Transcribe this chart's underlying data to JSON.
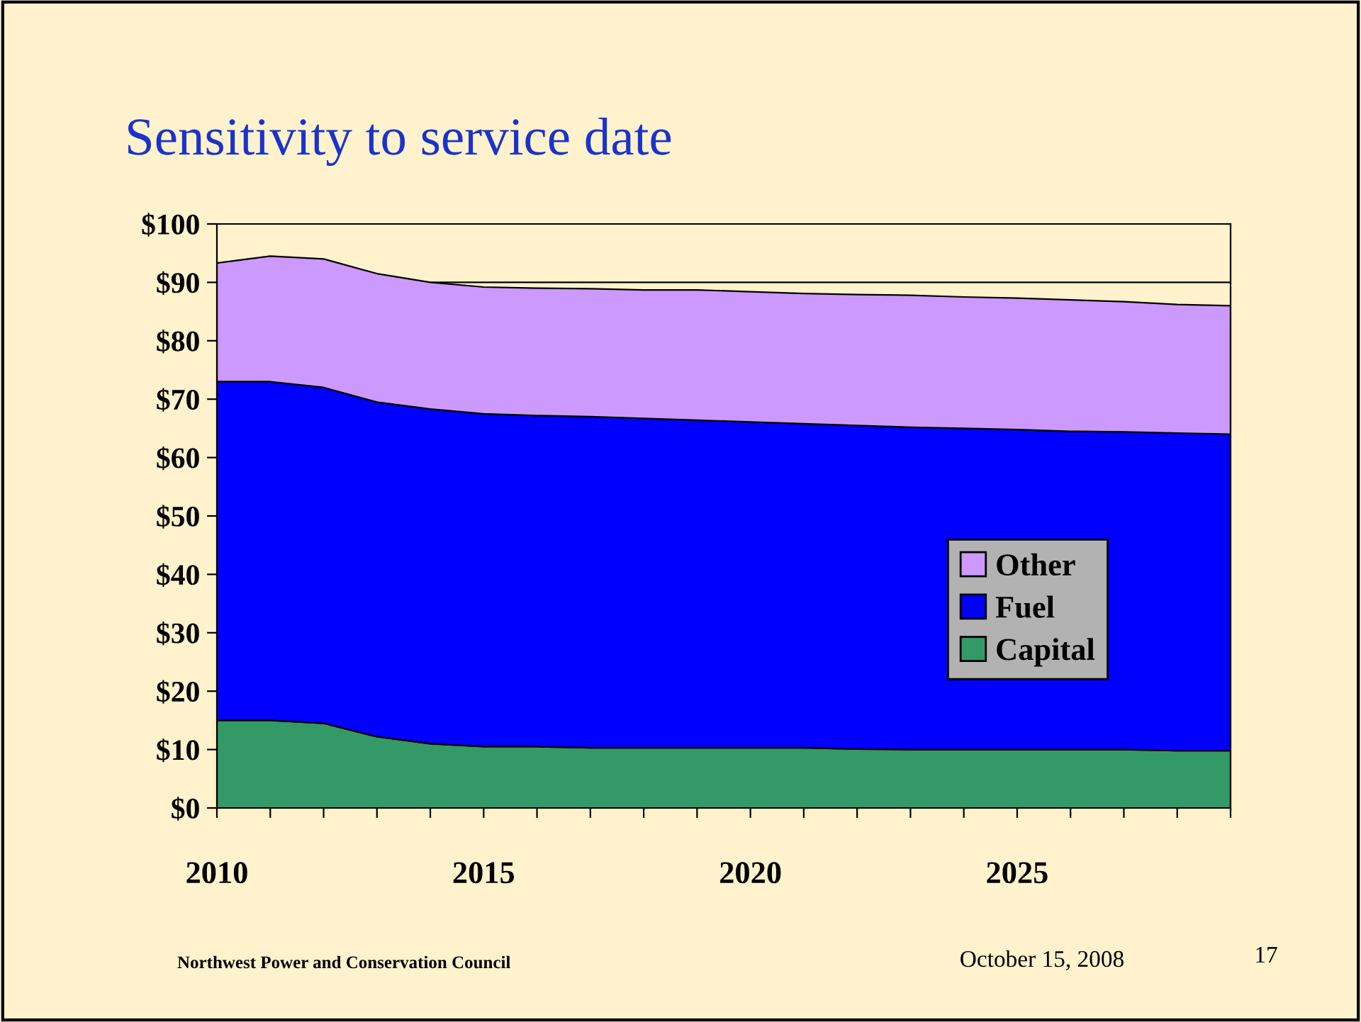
{
  "chart_data": {
    "type": "area",
    "title": "Sensitivity to service date",
    "stacked": true,
    "x": [
      2010,
      2011,
      2012,
      2013,
      2014,
      2015,
      2016,
      2017,
      2018,
      2019,
      2020,
      2021,
      2022,
      2023,
      2024,
      2025,
      2026,
      2027,
      2028,
      2029
    ],
    "series": [
      {
        "name": "Capital",
        "color": "#339966",
        "values": [
          15,
          15,
          14.5,
          12.2,
          11,
          10.5,
          10.5,
          10.3,
          10.3,
          10.3,
          10.3,
          10.3,
          10.1,
          10,
          10,
          10,
          10,
          10,
          9.8,
          9.8
        ]
      },
      {
        "name": "Fuel",
        "color": "#0000ff",
        "values": [
          58,
          58,
          57.5,
          57.3,
          57.3,
          57,
          56.7,
          56.7,
          56.4,
          56.1,
          55.8,
          55.5,
          55.4,
          55.2,
          55,
          54.8,
          54.5,
          54.4,
          54.4,
          54.2
        ]
      },
      {
        "name": "Other",
        "color": "#cc99ff",
        "values": [
          20.3,
          21.5,
          22,
          22,
          21.7,
          21.7,
          21.8,
          21.9,
          22,
          22.3,
          22.3,
          22.3,
          22.4,
          22.6,
          22.5,
          22.5,
          22.5,
          22.3,
          22,
          22
        ]
      }
    ],
    "xlim": [
      2010,
      2029
    ],
    "xticks": [
      2010,
      {
        "value": 2011,
        "label": null
      },
      {
        "value": 2012,
        "label": null
      },
      {
        "value": 2013,
        "label": null
      },
      {
        "value": 2014,
        "label": null
      },
      2015,
      {
        "value": 2016,
        "label": null
      },
      {
        "value": 2017,
        "label": null
      },
      {
        "value": 2018,
        "label": null
      },
      {
        "value": 2019,
        "label": null
      },
      2020,
      {
        "value": 2021,
        "label": null
      },
      {
        "value": 2022,
        "label": null
      },
      {
        "value": 2023,
        "label": null
      },
      {
        "value": 2024,
        "label": null
      },
      2025,
      {
        "value": 2026,
        "label": null
      },
      {
        "value": 2027,
        "label": null
      },
      {
        "value": 2028,
        "label": null
      },
      {
        "value": 2029,
        "label": null
      }
    ],
    "ylim": [
      0,
      100
    ],
    "yticks": [
      {
        "value": 0,
        "label": "$0"
      },
      {
        "value": 10,
        "label": "$10"
      },
      {
        "value": 20,
        "label": "$20"
      },
      {
        "value": 30,
        "label": "$30"
      },
      {
        "value": 40,
        "label": "$40"
      },
      {
        "value": 50,
        "label": "$50"
      },
      {
        "value": 60,
        "label": "$60"
      },
      {
        "value": 70,
        "label": "$70"
      },
      {
        "value": 80,
        "label": "$80"
      },
      {
        "value": 90,
        "label": "$90"
      },
      {
        "value": 100,
        "label": "$100"
      }
    ],
    "ref_lines": [
      {
        "axis": "y",
        "value": 90,
        "label": null,
        "color": "#000000"
      }
    ],
    "legend": "right",
    "annotations": [
      "Northwest Power and Conservation Council",
      "October 15, 2008",
      "17"
    ]
  }
}
